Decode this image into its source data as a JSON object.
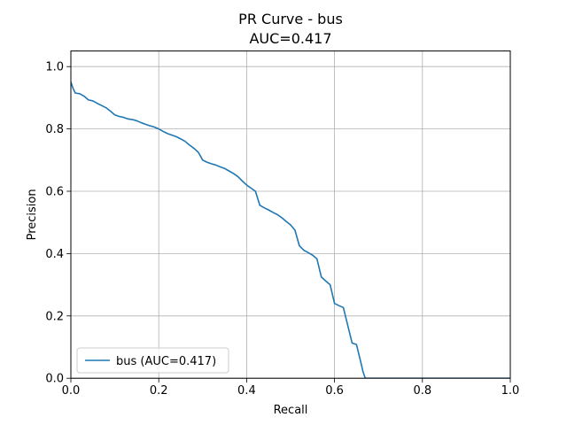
{
  "chart_data": {
    "type": "line",
    "title": "PR Curve - bus",
    "subtitle": "AUC=0.417",
    "xlabel": "Recall",
    "ylabel": "Precision",
    "xlim": [
      0,
      1
    ],
    "ylim": [
      0,
      1.05
    ],
    "xticks": [
      0,
      0.2,
      0.4,
      0.6,
      0.8,
      1
    ],
    "xtick_labels": [
      "0.0",
      "0.2",
      "0.4",
      "0.6",
      "0.8",
      "1.0"
    ],
    "yticks": [
      0,
      0.2,
      0.4,
      0.6,
      0.8,
      1
    ],
    "ytick_labels": [
      "0.0",
      "0.2",
      "0.4",
      "0.6",
      "0.8",
      "1.0"
    ],
    "grid": true,
    "legend_position": "lower-left",
    "series": [
      {
        "name": "bus (AUC=0.417)",
        "color": "#1f77b4",
        "x": [
          0,
          0.005,
          0.01,
          0.02,
          0.03,
          0.04,
          0.05,
          0.06,
          0.07,
          0.08,
          0.09,
          0.1,
          0.11,
          0.12,
          0.13,
          0.14,
          0.15,
          0.16,
          0.17,
          0.18,
          0.19,
          0.2,
          0.21,
          0.22,
          0.23,
          0.24,
          0.25,
          0.26,
          0.27,
          0.28,
          0.29,
          0.3,
          0.31,
          0.32,
          0.33,
          0.34,
          0.35,
          0.36,
          0.37,
          0.38,
          0.39,
          0.4,
          0.41,
          0.42,
          0.43,
          0.44,
          0.45,
          0.46,
          0.47,
          0.48,
          0.49,
          0.5,
          0.51,
          0.52,
          0.53,
          0.54,
          0.55,
          0.56,
          0.57,
          0.58,
          0.59,
          0.6,
          0.61,
          0.62,
          0.63,
          0.64,
          0.65,
          0.66,
          0.665,
          0.67,
          0.7,
          0.8,
          0.9,
          1.0
        ],
        "y": [
          0.95,
          0.93,
          0.915,
          0.913,
          0.905,
          0.893,
          0.89,
          0.882,
          0.875,
          0.868,
          0.857,
          0.845,
          0.84,
          0.837,
          0.832,
          0.83,
          0.826,
          0.82,
          0.815,
          0.81,
          0.806,
          0.8,
          0.792,
          0.785,
          0.78,
          0.775,
          0.768,
          0.76,
          0.748,
          0.738,
          0.725,
          0.7,
          0.693,
          0.688,
          0.684,
          0.678,
          0.673,
          0.665,
          0.657,
          0.647,
          0.633,
          0.62,
          0.61,
          0.6,
          0.555,
          0.547,
          0.54,
          0.532,
          0.525,
          0.515,
          0.503,
          0.492,
          0.475,
          0.425,
          0.411,
          0.403,
          0.395,
          0.383,
          0.325,
          0.312,
          0.3,
          0.24,
          0.233,
          0.227,
          0.17,
          0.113,
          0.108,
          0.05,
          0.02,
          0.0,
          0.0,
          0.0,
          0.0,
          0.0
        ]
      }
    ]
  }
}
